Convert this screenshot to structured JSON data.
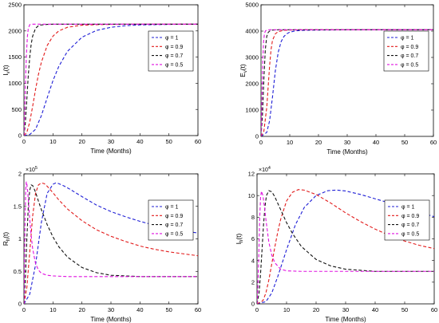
{
  "legend_template": "φ = {v}",
  "chart_data": [
    {
      "type": "line",
      "ylabel": "I_v(t)",
      "xlabel": "Time (Months)",
      "xlim": [
        0,
        60
      ],
      "ylim": [
        0,
        2500
      ],
      "xticks": [
        0,
        10,
        20,
        30,
        40,
        50,
        60
      ],
      "yticks": [
        0,
        500,
        1000,
        1500,
        2000,
        2500
      ],
      "ytick_labels": [
        "0",
        "500",
        "1000",
        "1500",
        "2000",
        "2500"
      ],
      "exponent": "",
      "legend_position": "top-right",
      "series": [
        {
          "name": "φ = 1",
          "color": "#1f1fd6",
          "x": [
            0,
            2,
            4,
            6,
            8,
            10,
            12,
            15,
            20,
            25,
            30,
            35,
            40,
            45,
            50,
            60
          ],
          "y": [
            0,
            20,
            120,
            380,
            720,
            1050,
            1320,
            1610,
            1880,
            2010,
            2070,
            2100,
            2115,
            2120,
            2125,
            2130
          ]
        },
        {
          "name": "φ = 0.9",
          "color": "#e21b1b",
          "x": [
            0,
            1,
            2,
            3,
            4,
            5,
            6,
            8,
            10,
            12,
            15,
            20,
            25,
            30,
            40,
            60
          ],
          "y": [
            0,
            60,
            260,
            560,
            880,
            1170,
            1400,
            1720,
            1900,
            2000,
            2070,
            2110,
            2120,
            2125,
            2130,
            2130
          ]
        },
        {
          "name": "φ = 0.7",
          "color": "#111111",
          "x": [
            0,
            0.5,
            1,
            1.5,
            2,
            2.5,
            3,
            4,
            5,
            6,
            8,
            10,
            15,
            20,
            60
          ],
          "y": [
            0,
            250,
            700,
            1150,
            1500,
            1750,
            1900,
            2050,
            2100,
            2115,
            2125,
            2130,
            2130,
            2130,
            2130
          ]
        },
        {
          "name": "φ = 0.5",
          "color": "#e010e0",
          "x": [
            0,
            0.3,
            0.6,
            0.9,
            1.2,
            1.5,
            2,
            2.5,
            3,
            4,
            60
          ],
          "y": [
            0,
            500,
            1150,
            1600,
            1900,
            2050,
            2120,
            2130,
            2130,
            2130,
            2130
          ]
        }
      ]
    },
    {
      "type": "line",
      "ylabel": "E_v(t)",
      "xlabel": "Time (Months)",
      "xlim": [
        0,
        60
      ],
      "ylim": [
        0,
        5000
      ],
      "xticks": [
        0,
        10,
        20,
        30,
        40,
        50,
        60
      ],
      "yticks": [
        0,
        1000,
        2000,
        3000,
        4000,
        5000
      ],
      "ytick_labels": [
        "0",
        "1000",
        "2000",
        "3000",
        "4000",
        "5000"
      ],
      "exponent": "",
      "legend_position": "top-right",
      "series": [
        {
          "name": "φ = 1",
          "color": "#1f1fd6",
          "x": [
            0,
            2,
            3,
            4,
            5,
            6,
            7,
            8,
            9,
            10,
            12,
            15,
            20,
            30,
            60
          ],
          "y": [
            0,
            150,
            600,
            1500,
            2500,
            3200,
            3600,
            3800,
            3900,
            3960,
            4010,
            4030,
            4040,
            4050,
            4050
          ]
        },
        {
          "name": "φ = 0.9",
          "color": "#e21b1b",
          "x": [
            0,
            1,
            2,
            2.5,
            3,
            3.5,
            4,
            5,
            6,
            8,
            10,
            15,
            60
          ],
          "y": [
            0,
            200,
            1100,
            1900,
            2700,
            3300,
            3650,
            3900,
            3980,
            4030,
            4040,
            4050,
            4050
          ]
        },
        {
          "name": "φ = 0.7",
          "color": "#111111",
          "x": [
            0,
            0.5,
            1,
            1.5,
            2,
            2.5,
            3,
            4,
            6,
            60
          ],
          "y": [
            0,
            800,
            2200,
            3300,
            3800,
            3950,
            4000,
            4040,
            4050,
            4050
          ]
        },
        {
          "name": "φ = 0.5",
          "color": "#e010e0",
          "x": [
            0,
            0.3,
            0.6,
            0.9,
            1.2,
            1.5,
            2,
            3,
            60
          ],
          "y": [
            0,
            1300,
            2800,
            3600,
            3900,
            4000,
            4040,
            4050,
            4050
          ]
        }
      ]
    },
    {
      "type": "line",
      "ylabel": "R_h(t)",
      "xlabel": "Time (Months)",
      "xlim": [
        0,
        60
      ],
      "ylim": [
        0,
        2
      ],
      "xticks": [
        0,
        10,
        20,
        30,
        40,
        50,
        60
      ],
      "yticks": [
        0,
        0.5,
        1,
        1.5,
        2
      ],
      "ytick_labels": [
        "0",
        "0.5",
        "1",
        "1.5",
        "2"
      ],
      "exponent": "5",
      "legend_position": "top-right",
      "series": [
        {
          "name": "φ = 1",
          "color": "#1f1fd6",
          "x": [
            0,
            2,
            4,
            6,
            8,
            10,
            11,
            12,
            14,
            16,
            20,
            25,
            30,
            35,
            40,
            45,
            50,
            55,
            60
          ],
          "y": [
            0,
            0.15,
            0.6,
            1.25,
            1.7,
            1.84,
            1.86,
            1.85,
            1.81,
            1.76,
            1.65,
            1.52,
            1.42,
            1.34,
            1.27,
            1.21,
            1.16,
            1.12,
            1.09
          ]
        },
        {
          "name": "φ = 0.9",
          "color": "#e21b1b",
          "x": [
            0,
            1,
            2,
            3,
            4,
            5,
            6,
            7,
            8,
            10,
            12,
            15,
            20,
            25,
            30,
            35,
            40,
            45,
            50,
            55,
            60
          ],
          "y": [
            0,
            0.25,
            0.8,
            1.35,
            1.7,
            1.83,
            1.86,
            1.85,
            1.81,
            1.71,
            1.6,
            1.46,
            1.28,
            1.14,
            1.04,
            0.96,
            0.89,
            0.84,
            0.8,
            0.77,
            0.74
          ]
        },
        {
          "name": "φ = 0.7",
          "color": "#111111",
          "x": [
            0,
            0.5,
            1,
            1.5,
            2,
            2.5,
            3,
            4,
            5,
            6,
            8,
            10,
            12,
            15,
            20,
            25,
            30,
            35,
            40,
            50,
            60
          ],
          "y": [
            0,
            0.4,
            1.0,
            1.5,
            1.75,
            1.83,
            1.82,
            1.72,
            1.58,
            1.45,
            1.22,
            1.03,
            0.88,
            0.72,
            0.56,
            0.48,
            0.44,
            0.43,
            0.42,
            0.42,
            0.42
          ]
        },
        {
          "name": "φ = 0.5",
          "color": "#e010e0",
          "x": [
            0,
            0.2,
            0.4,
            0.6,
            0.8,
            1,
            1.3,
            1.6,
            2,
            2.5,
            3,
            4,
            5,
            6,
            8,
            10,
            15,
            20,
            30,
            60
          ],
          "y": [
            0,
            0.6,
            1.3,
            1.75,
            1.88,
            1.85,
            1.72,
            1.55,
            1.3,
            1.05,
            0.85,
            0.62,
            0.52,
            0.47,
            0.44,
            0.43,
            0.42,
            0.42,
            0.42,
            0.42
          ]
        }
      ]
    },
    {
      "type": "line",
      "ylabel": "I_h(t)",
      "xlabel": "Time (Months)",
      "xlim": [
        0,
        60
      ],
      "ylim": [
        0,
        12
      ],
      "xticks": [
        0,
        10,
        20,
        30,
        40,
        50,
        60
      ],
      "yticks": [
        0,
        2,
        4,
        6,
        8,
        10,
        12
      ],
      "ytick_labels": [
        "0",
        "2",
        "4",
        "6",
        "8",
        "10",
        "12"
      ],
      "exponent": "4",
      "legend_position": "top-right",
      "series": [
        {
          "name": "φ = 1",
          "color": "#1f1fd6",
          "x": [
            0,
            3,
            5,
            7,
            10,
            13,
            16,
            20,
            24,
            27,
            30,
            35,
            40,
            45,
            50,
            55,
            60
          ],
          "y": [
            0,
            0.2,
            1.0,
            2.5,
            5.0,
            7.3,
            8.9,
            10.0,
            10.45,
            10.5,
            10.42,
            10.1,
            9.7,
            9.3,
            8.85,
            8.45,
            8.05
          ]
        },
        {
          "name": "φ = 0.9",
          "color": "#e21b1b",
          "x": [
            0,
            2,
            3,
            4,
            5,
            6,
            7,
            8,
            10,
            12,
            14,
            16,
            20,
            25,
            30,
            35,
            40,
            45,
            50,
            55,
            60
          ],
          "y": [
            0,
            0.3,
            1.0,
            2.2,
            3.7,
            5.2,
            6.6,
            7.8,
            9.5,
            10.3,
            10.55,
            10.5,
            10.1,
            9.3,
            8.4,
            7.6,
            6.9,
            6.3,
            5.8,
            5.4,
            5.1
          ]
        },
        {
          "name": "φ = 0.7",
          "color": "#111111",
          "x": [
            0,
            0.7,
            1.2,
            1.7,
            2.2,
            2.7,
            3.2,
            4,
            5,
            6,
            7,
            8,
            10,
            12,
            15,
            20,
            25,
            30,
            40,
            50,
            60
          ],
          "y": [
            0,
            1.0,
            2.8,
            5.0,
            7.3,
            9.0,
            10.0,
            10.45,
            10.35,
            9.9,
            9.3,
            8.7,
            7.5,
            6.5,
            5.3,
            4.1,
            3.5,
            3.2,
            3.0,
            3.0,
            3.0
          ]
        },
        {
          "name": "φ = 0.5",
          "color": "#e010e0",
          "x": [
            0,
            0.3,
            0.6,
            0.9,
            1.2,
            1.5,
            2,
            2.5,
            3,
            4,
            5,
            6,
            8,
            10,
            15,
            20,
            60
          ],
          "y": [
            0,
            1.5,
            4.5,
            7.8,
            9.8,
            10.4,
            10.0,
            9.0,
            7.8,
            5.7,
            4.5,
            3.8,
            3.2,
            3.05,
            3.0,
            3.0,
            3.0
          ]
        }
      ]
    }
  ]
}
